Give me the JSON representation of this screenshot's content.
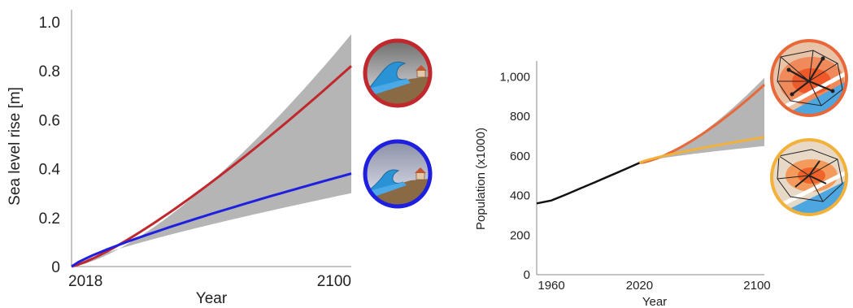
{
  "chart_data": [
    {
      "type": "line",
      "xlabel": "Year",
      "ylabel": "Sea level rise [m]",
      "xlim": [
        2018,
        2100
      ],
      "ylim": [
        0,
        1.05
      ],
      "x_ticks": [
        "2018",
        "2100"
      ],
      "y_ticks": [
        "0",
        "0.2",
        "0.4",
        "0.6",
        "0.8",
        "1.0"
      ],
      "band": {
        "x_end": 2100,
        "upper_end": 0.95,
        "lower_end": 0.3
      },
      "series": [
        {
          "values_at_end": 0.82,
          "color": "#c0282d"
        },
        {
          "values_at_end": 0.38,
          "color": "#1f1fe0"
        }
      ],
      "icons": [
        "tsunami-red-icon",
        "tsunami-blue-icon"
      ]
    },
    {
      "type": "line",
      "xlabel": "Year",
      "ylabel": "Population (x1000)",
      "xlim": [
        1950,
        2105
      ],
      "ylim": [
        0,
        1080
      ],
      "x_ticks": [
        "1960",
        "2020",
        "2100"
      ],
      "y_ticks": [
        "0",
        "200",
        "400",
        "600",
        "800",
        "1,000"
      ],
      "historical": {
        "x": [
          1950,
          1960,
          1970,
          1980,
          1990,
          2000,
          2010,
          2020
        ],
        "y": [
          360,
          375,
          405,
          437,
          468,
          500,
          532,
          565
        ],
        "color": "#111111"
      },
      "band": {
        "x": [
          2020,
          2105
        ],
        "upper_end": 995,
        "lower_end": 650
      },
      "series": [
        {
          "values_at_end": 960,
          "color": "#e8683a"
        },
        {
          "values_at_end": 695,
          "color": "#f2b13a"
        }
      ],
      "icons": [
        "city-map-orange-icon",
        "city-map-yellow-icon"
      ]
    }
  ]
}
